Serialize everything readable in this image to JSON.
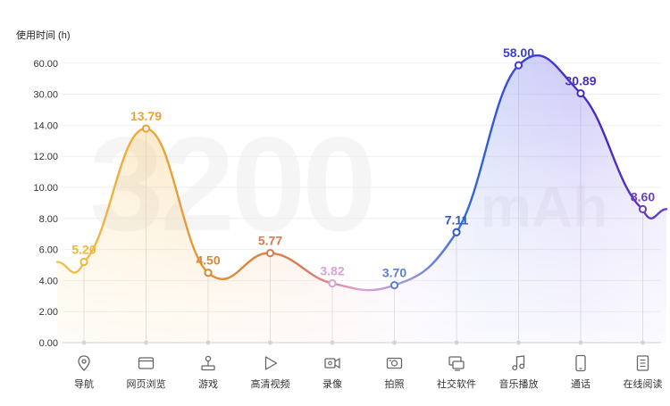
{
  "chart_data": {
    "type": "line",
    "ylabel": "使用时间 (h)",
    "y_tick_labels": [
      "0.00",
      "2.00",
      "4.00",
      "6.00",
      "8.00",
      "10.00",
      "12.00",
      "14.00",
      "30.00",
      "60.00"
    ],
    "categories": [
      "导航",
      "网页浏览",
      "游戏",
      "高清视频",
      "录像",
      "拍照",
      "社交软件",
      "音乐播放",
      "通话",
      "在线阅读"
    ],
    "values": [
      5.2,
      13.79,
      4.5,
      5.77,
      3.82,
      3.7,
      7.11,
      58.0,
      30.89,
      8.6
    ],
    "value_labels": [
      "5.20",
      "13.79",
      "4.50",
      "5.77",
      "3.82",
      "3.70",
      "7.11",
      "58.00",
      "30.89",
      "8.60"
    ],
    "point_colors": [
      "#f3b53c",
      "#e9a23a",
      "#d9883a",
      "#d97a52",
      "#dfa0d6",
      "#5b7fd1",
      "#2f5cc4",
      "#3d3fd3",
      "#4a2fbf",
      "#6a3fbf"
    ],
    "icons": [
      "location-pin-icon",
      "browser-window-icon",
      "joystick-icon",
      "play-icon",
      "camcorder-icon",
      "camera-icon",
      "chat-window-icon",
      "music-note-icon",
      "phone-icon",
      "document-icon"
    ],
    "watermark": "3200",
    "watermark_unit": "mAh"
  }
}
